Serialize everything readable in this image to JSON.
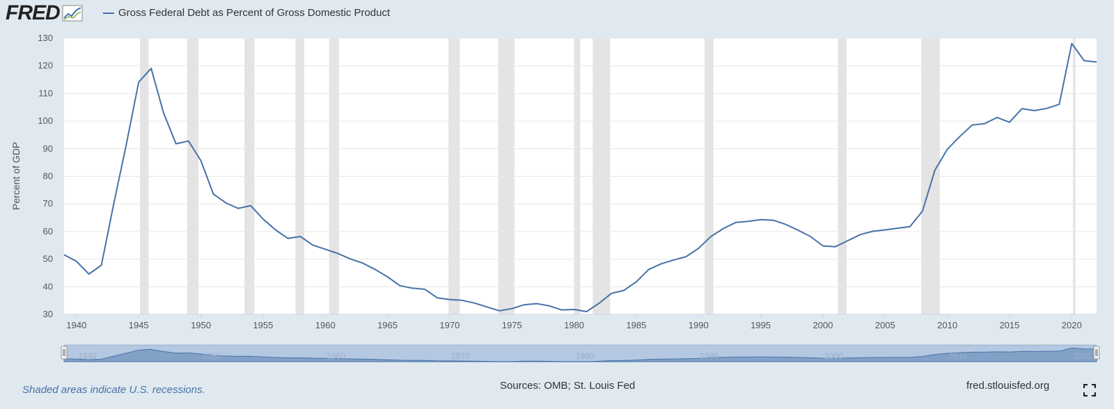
{
  "header": {
    "logo_text": "FRED",
    "legend_label": "Gross Federal Debt as Percent of Gross Domestic Product"
  },
  "footer": {
    "recession_note": "Shaded areas indicate U.S. recessions.",
    "sources": "Sources: OMB; St. Louis Fed",
    "url": "fred.stlouisfed.org"
  },
  "colors": {
    "series": "#4572a7",
    "recession": "#e4e4e4",
    "background": "#e1e9f0",
    "navigator_mask": "#b5c8e2"
  },
  "chart_data": {
    "type": "line",
    "ylabel": "Percent of GDP",
    "ylim": [
      30,
      130
    ],
    "yticks": [
      30,
      40,
      50,
      60,
      70,
      80,
      90,
      100,
      110,
      120,
      130
    ],
    "xlim": [
      1939,
      2022
    ],
    "xticks": [
      1940,
      1945,
      1950,
      1955,
      1960,
      1965,
      1970,
      1975,
      1980,
      1985,
      1990,
      1995,
      2000,
      2005,
      2010,
      2015,
      2020
    ],
    "navigator_ticks": [
      1940,
      1950,
      1960,
      1970,
      1980,
      1990,
      2000,
      2010,
      2020
    ],
    "grid": true,
    "recessions": [
      [
        1945.1,
        1945.8
      ],
      [
        1948.9,
        1949.8
      ],
      [
        1953.5,
        1954.3
      ],
      [
        1957.6,
        1958.3
      ],
      [
        1960.3,
        1961.1
      ],
      [
        1969.9,
        1970.8
      ],
      [
        1973.9,
        1975.2
      ],
      [
        1980.0,
        1980.5
      ],
      [
        1981.5,
        1982.9
      ],
      [
        1990.5,
        1991.2
      ],
      [
        2001.2,
        2001.9
      ],
      [
        2007.9,
        2009.4
      ],
      [
        2020.1,
        2020.3
      ]
    ],
    "series": [
      {
        "name": "Gross Federal Debt as Percent of Gross Domestic Product",
        "x": [
          1939,
          1940,
          1941,
          1942,
          1943,
          1944,
          1945,
          1946,
          1947,
          1948,
          1949,
          1950,
          1951,
          1952,
          1953,
          1954,
          1955,
          1956,
          1957,
          1958,
          1959,
          1960,
          1961,
          1962,
          1963,
          1964,
          1965,
          1966,
          1967,
          1968,
          1969,
          1970,
          1971,
          1972,
          1973,
          1974,
          1975,
          1976,
          1977,
          1978,
          1979,
          1980,
          1981,
          1982,
          1983,
          1984,
          1985,
          1986,
          1987,
          1988,
          1989,
          1990,
          1991,
          1992,
          1993,
          1994,
          1995,
          1996,
          1997,
          1998,
          1999,
          2000,
          2001,
          2002,
          2003,
          2004,
          2005,
          2006,
          2007,
          2008,
          2009,
          2010,
          2011,
          2012,
          2013,
          2014,
          2015,
          2016,
          2017,
          2018,
          2019,
          2020,
          2021,
          2022
        ],
        "y": [
          51.6,
          49.2,
          44.6,
          47.8,
          70.2,
          91.4,
          114.1,
          119.1,
          103.0,
          91.8,
          92.8,
          85.7,
          73.6,
          70.4,
          68.4,
          69.4,
          64.5,
          60.6,
          57.5,
          58.2,
          55.1,
          53.6,
          52.1,
          50.1,
          48.6,
          46.3,
          43.6,
          40.4,
          39.5,
          39.1,
          36.0,
          35.4,
          35.1,
          34.1,
          32.7,
          31.3,
          32.1,
          33.5,
          33.9,
          33.1,
          31.6,
          31.8,
          31.0,
          34.0,
          37.6,
          38.7,
          41.8,
          46.3,
          48.3,
          49.7,
          50.9,
          53.9,
          58.2,
          61.1,
          63.3,
          63.7,
          64.3,
          64.1,
          62.6,
          60.5,
          58.2,
          54.8,
          54.5,
          56.7,
          58.9,
          60.1,
          60.6,
          61.2,
          61.8,
          67.4,
          82.2,
          89.8,
          94.4,
          98.6,
          99.1,
          101.3,
          99.6,
          104.5,
          103.8,
          104.6,
          106.1,
          128.1,
          121.9,
          121.4
        ]
      }
    ]
  }
}
